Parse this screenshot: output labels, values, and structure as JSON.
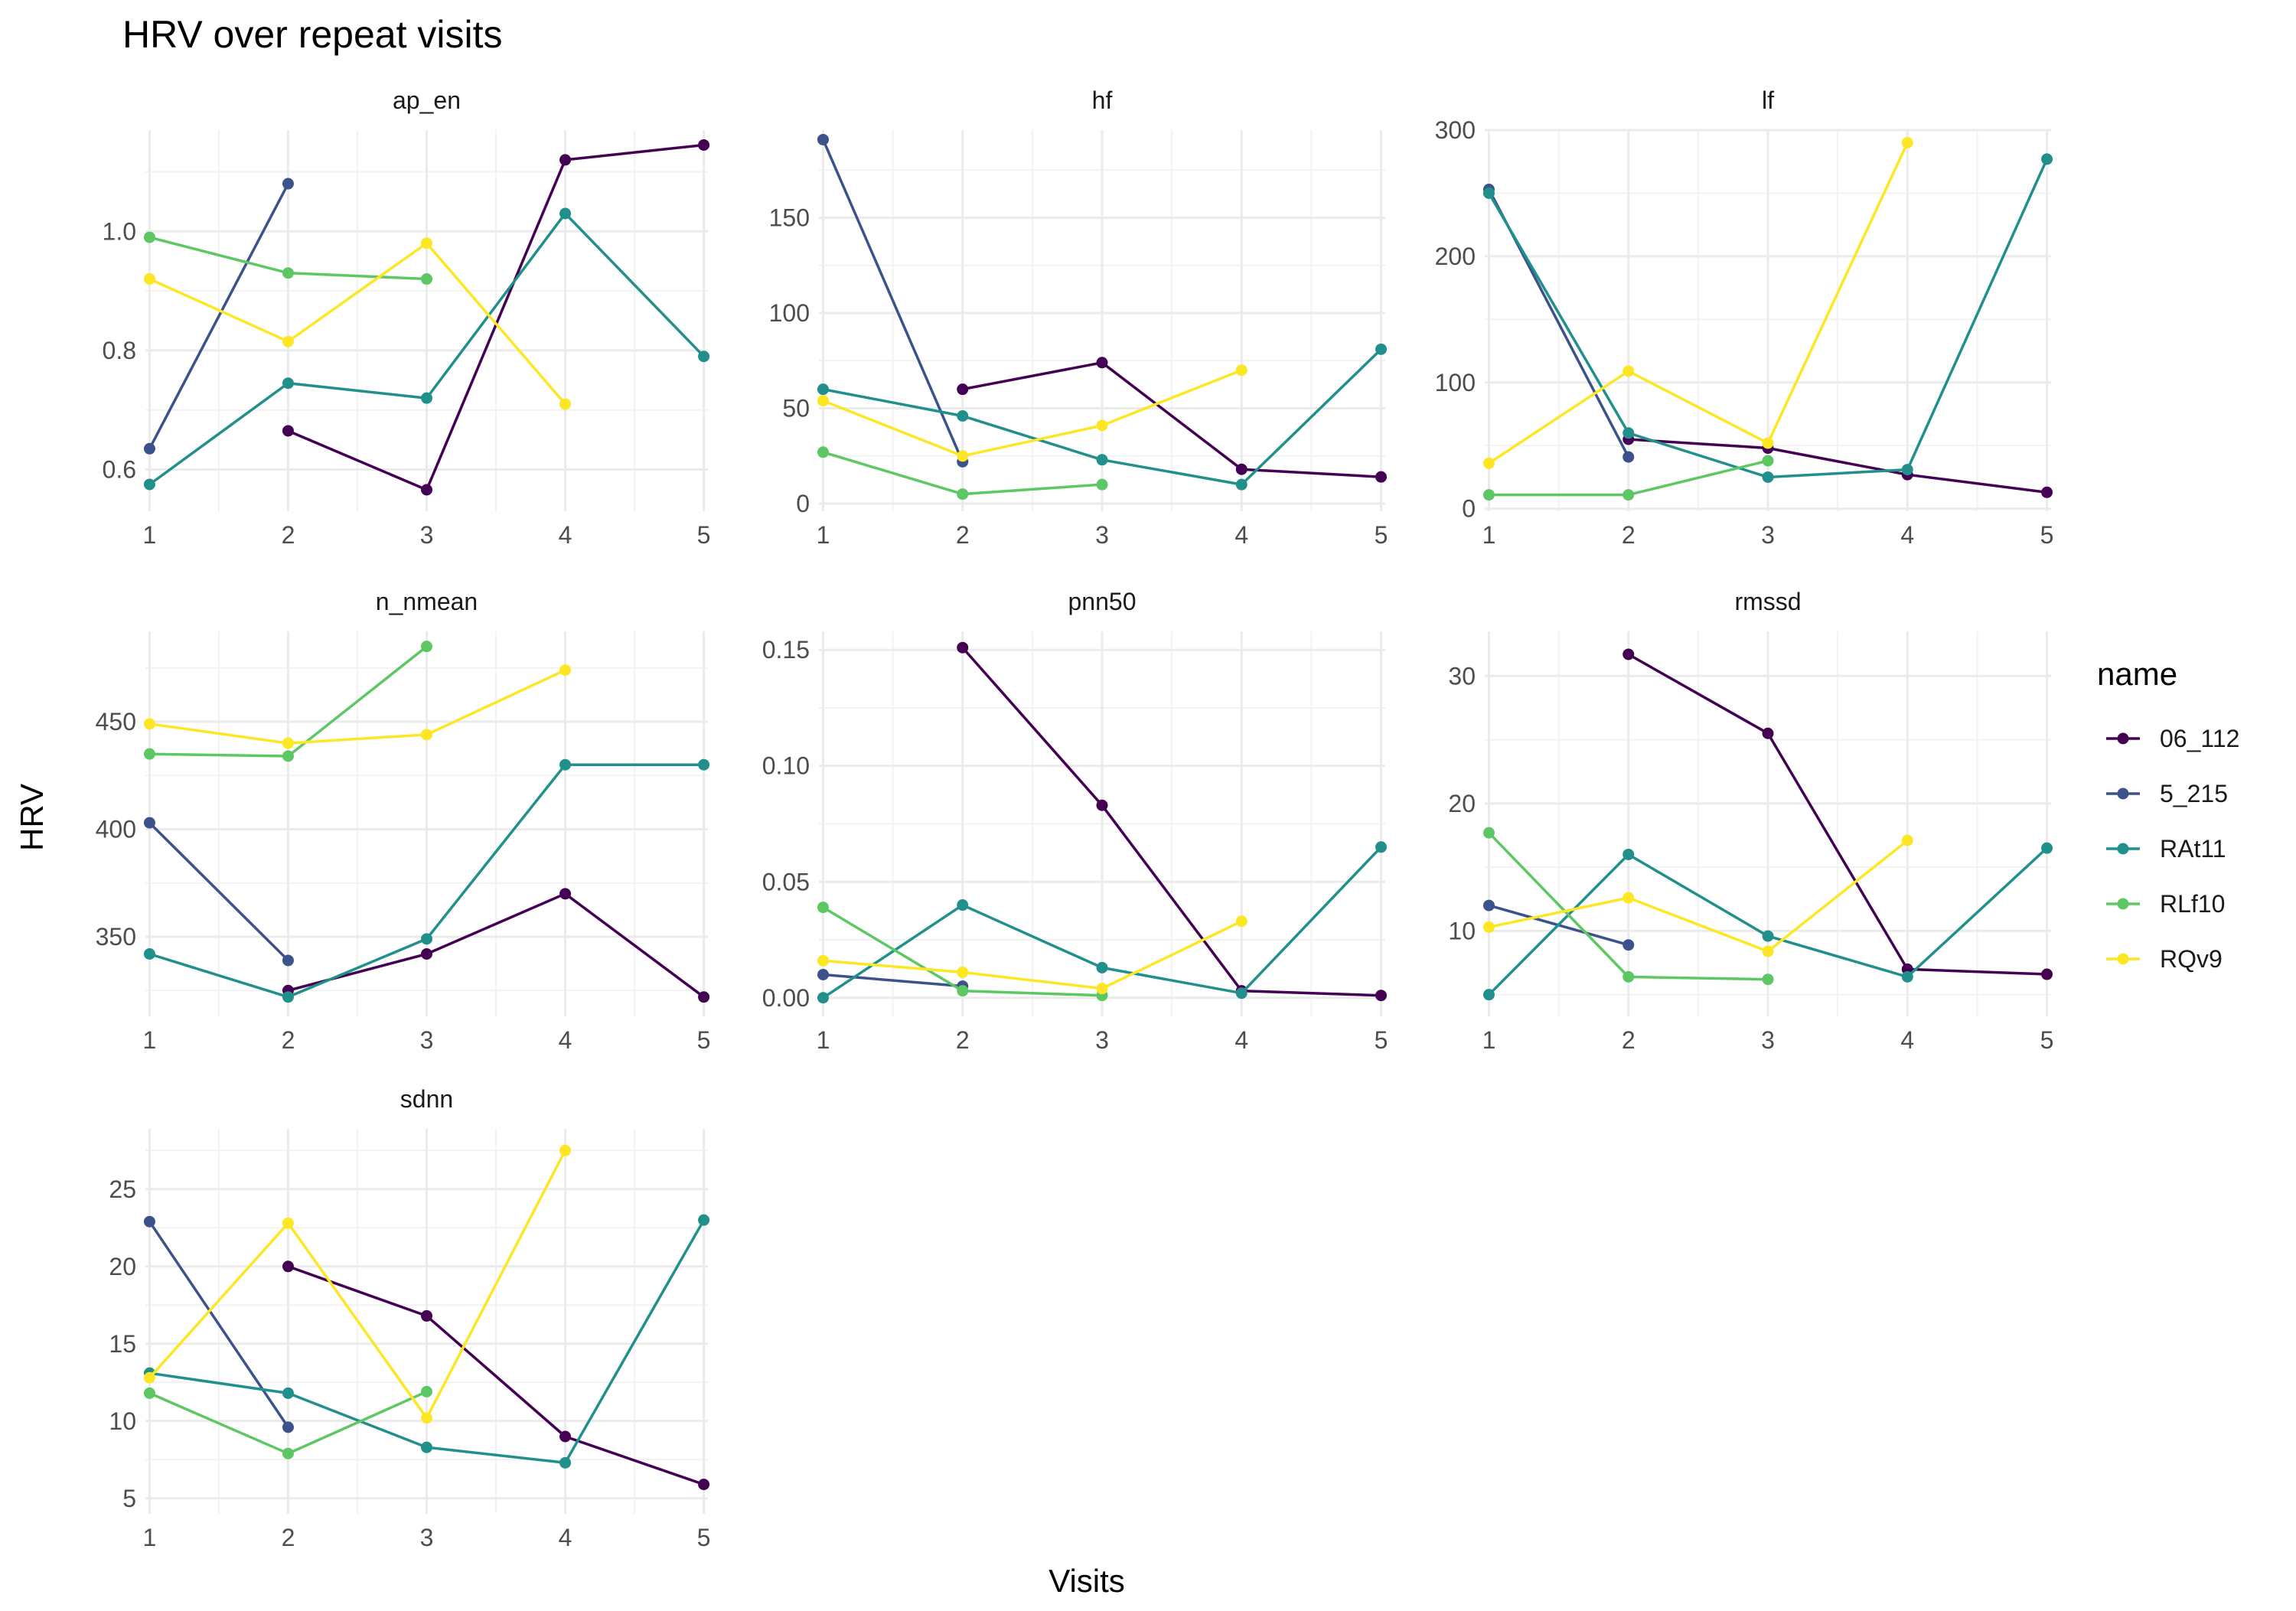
{
  "chart_data": {
    "type": "line",
    "title": "HRV over repeat visits",
    "xlabel": "Visits",
    "ylabel": "HRV",
    "legend": {
      "title": "name",
      "placement": "right"
    },
    "grid": true,
    "colors": {
      "06_112": "#440154",
      "5_215": "#3b528b",
      "RAt11": "#21908c",
      "RLf10": "#5dc863",
      "RQv9": "#fde725"
    },
    "series_names": [
      "06_112",
      "5_215",
      "RAt11",
      "RLf10",
      "RQv9"
    ],
    "x_ticks": [
      "1",
      "2",
      "3",
      "4",
      "5"
    ],
    "xlim": [
      0.97,
      5.03
    ],
    "panels": [
      {
        "name": "ap_en",
        "ylim": [
          0.53,
          1.17
        ],
        "y_ticks": [
          0.6,
          0.8,
          1.0
        ],
        "y_tick_labels": [
          "0.6",
          "0.8",
          "1.0"
        ],
        "series": [
          {
            "name": "06_112",
            "x": [
              2,
              3,
              4,
              5
            ],
            "y": [
              0.665,
              0.566,
              1.12,
              1.145
            ]
          },
          {
            "name": "5_215",
            "x": [
              1,
              2
            ],
            "y": [
              0.635,
              1.08
            ]
          },
          {
            "name": "RAt11",
            "x": [
              1,
              2,
              3,
              4,
              5
            ],
            "y": [
              0.575,
              0.745,
              0.72,
              1.03,
              0.79
            ]
          },
          {
            "name": "RLf10",
            "x": [
              1,
              2,
              3
            ],
            "y": [
              0.99,
              0.93,
              0.92
            ]
          },
          {
            "name": "RQv9",
            "x": [
              1,
              2,
              3,
              4
            ],
            "y": [
              0.92,
              0.815,
              0.98,
              0.71
            ]
          }
        ]
      },
      {
        "name": "hf",
        "ylim": [
          -4,
          196
        ],
        "y_ticks": [
          0,
          50,
          100,
          150
        ],
        "y_tick_labels": [
          "0",
          "50",
          "100",
          "150"
        ],
        "series": [
          {
            "name": "06_112",
            "x": [
              2,
              3,
              4,
              5
            ],
            "y": [
              60,
              74,
              18,
              14
            ]
          },
          {
            "name": "5_215",
            "x": [
              1,
              2
            ],
            "y": [
              191,
              22
            ]
          },
          {
            "name": "RAt11",
            "x": [
              1,
              2,
              3,
              4,
              5
            ],
            "y": [
              60,
              46,
              23,
              10,
              81
            ]
          },
          {
            "name": "RLf10",
            "x": [
              1,
              2,
              3
            ],
            "y": [
              27,
              5,
              10
            ]
          },
          {
            "name": "RQv9",
            "x": [
              1,
              2,
              3,
              4
            ],
            "y": [
              54,
              25,
              41,
              70
            ]
          }
        ]
      },
      {
        "name": "lf",
        "ylim": [
          -2,
          300
        ],
        "y_ticks": [
          0,
          100,
          200,
          300
        ],
        "y_tick_labels": [
          "0",
          "100",
          "200",
          "300"
        ],
        "series": [
          {
            "name": "06_112",
            "x": [
              2,
              3,
              4,
              5
            ],
            "y": [
              55,
              48,
              27,
              13
            ]
          },
          {
            "name": "5_215",
            "x": [
              1,
              2
            ],
            "y": [
              253,
              41
            ]
          },
          {
            "name": "RAt11",
            "x": [
              1,
              2,
              3,
              4,
              5
            ],
            "y": [
              250,
              60,
              25,
              31,
              277
            ]
          },
          {
            "name": "RLf10",
            "x": [
              1,
              2,
              3
            ],
            "y": [
              11,
              11,
              38
            ]
          },
          {
            "name": "RQv9",
            "x": [
              1,
              2,
              3,
              4
            ],
            "y": [
              36,
              109,
              52,
              290
            ]
          }
        ]
      },
      {
        "name": "n_nmean",
        "ylim": [
          313,
          492
        ],
        "y_ticks": [
          350,
          400,
          450
        ],
        "y_tick_labels": [
          "350",
          "400",
          "450"
        ],
        "series": [
          {
            "name": "06_112",
            "x": [
              2,
              3,
              4,
              5
            ],
            "y": [
              325,
              342,
              370,
              322
            ]
          },
          {
            "name": "5_215",
            "x": [
              1,
              2
            ],
            "y": [
              403,
              339
            ]
          },
          {
            "name": "RAt11",
            "x": [
              1,
              2,
              3,
              4,
              5
            ],
            "y": [
              342,
              322,
              349,
              430,
              430
            ]
          },
          {
            "name": "RLf10",
            "x": [
              1,
              2,
              3
            ],
            "y": [
              435,
              434,
              485
            ]
          },
          {
            "name": "RQv9",
            "x": [
              1,
              2,
              3,
              4
            ],
            "y": [
              449,
              440,
              444,
              474
            ]
          }
        ]
      },
      {
        "name": "pnn50",
        "ylim": [
          -0.008,
          0.158
        ],
        "y_ticks": [
          0.0,
          0.05,
          0.1,
          0.15
        ],
        "y_tick_labels": [
          "0.00",
          "0.05",
          "0.10",
          "0.15"
        ],
        "series": [
          {
            "name": "06_112",
            "x": [
              2,
              3,
              4,
              5
            ],
            "y": [
              0.151,
              0.083,
              0.003,
              0.001
            ]
          },
          {
            "name": "5_215",
            "x": [
              1,
              2
            ],
            "y": [
              0.01,
              0.005
            ]
          },
          {
            "name": "RAt11",
            "x": [
              1,
              2,
              3,
              4,
              5
            ],
            "y": [
              0.0,
              0.04,
              0.013,
              0.002,
              0.065
            ]
          },
          {
            "name": "RLf10",
            "x": [
              1,
              2,
              3
            ],
            "y": [
              0.039,
              0.003,
              0.001
            ]
          },
          {
            "name": "RQv9",
            "x": [
              1,
              2,
              3,
              4
            ],
            "y": [
              0.016,
              0.011,
              0.004,
              0.033
            ]
          }
        ]
      },
      {
        "name": "rmssd",
        "ylim": [
          3.3,
          33.5
        ],
        "y_ticks": [
          10,
          20,
          30
        ],
        "y_tick_labels": [
          "10",
          "20",
          "30"
        ],
        "series": [
          {
            "name": "06_112",
            "x": [
              2,
              3,
              4,
              5
            ],
            "y": [
              31.7,
              25.5,
              7.0,
              6.6
            ]
          },
          {
            "name": "5_215",
            "x": [
              1,
              2
            ],
            "y": [
              12.0,
              8.9
            ]
          },
          {
            "name": "RAt11",
            "x": [
              1,
              2,
              3,
              4,
              5
            ],
            "y": [
              5.0,
              16.0,
              9.6,
              6.4,
              16.5
            ]
          },
          {
            "name": "RLf10",
            "x": [
              1,
              2,
              3
            ],
            "y": [
              17.7,
              6.4,
              6.2
            ]
          },
          {
            "name": "RQv9",
            "x": [
              1,
              2,
              3,
              4
            ],
            "y": [
              10.3,
              12.6,
              8.4,
              17.1
            ]
          }
        ]
      },
      {
        "name": "sdnn",
        "ylim": [
          4.0,
          28.9
        ],
        "y_ticks": [
          5,
          10,
          15,
          20,
          25
        ],
        "y_tick_labels": [
          "5",
          "10",
          "15",
          "20",
          "25"
        ],
        "series": [
          {
            "name": "06_112",
            "x": [
              2,
              3,
              4,
              5
            ],
            "y": [
              20.0,
              16.8,
              9.0,
              5.9
            ]
          },
          {
            "name": "5_215",
            "x": [
              1,
              2
            ],
            "y": [
              22.9,
              9.6
            ]
          },
          {
            "name": "RAt11",
            "x": [
              1,
              2,
              3,
              4,
              5
            ],
            "y": [
              13.1,
              11.8,
              8.3,
              7.3,
              23.0
            ]
          },
          {
            "name": "RLf10",
            "x": [
              1,
              2,
              3
            ],
            "y": [
              11.8,
              7.9,
              11.9
            ]
          },
          {
            "name": "RQv9",
            "x": [
              1,
              2,
              3,
              4
            ],
            "y": [
              12.8,
              22.8,
              10.2,
              27.5
            ]
          }
        ]
      }
    ]
  }
}
